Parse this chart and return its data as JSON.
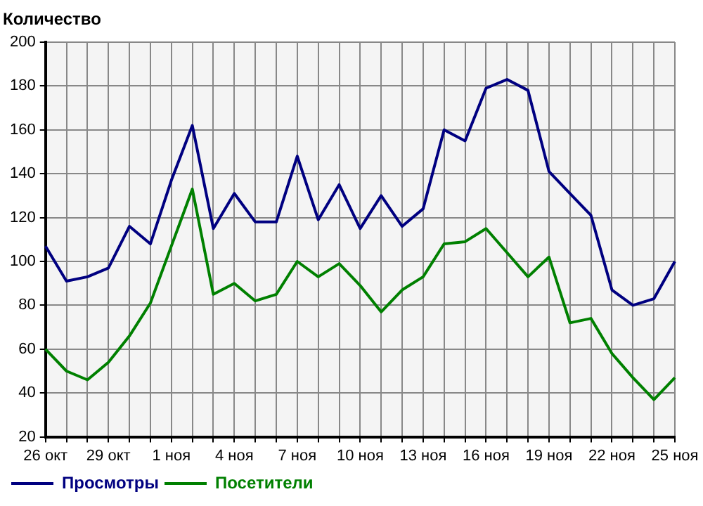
{
  "chart_data": {
    "type": "line",
    "ylabel": "Количество",
    "categories": [
      "26 окт",
      null,
      null,
      "29 окт",
      null,
      null,
      "1 ноя",
      null,
      null,
      "4 ноя",
      null,
      null,
      "7 ноя",
      null,
      null,
      "10 ноя",
      null,
      null,
      "13 ноя",
      null,
      null,
      "16 ноя",
      null,
      null,
      "19 ноя",
      null,
      null,
      "22 ноя",
      null,
      null,
      "25 ноя"
    ],
    "series": [
      {
        "name": "Просмотры",
        "color": "#000080",
        "values": [
          107,
          91,
          93,
          97,
          116,
          108,
          137,
          162,
          115,
          131,
          118,
          118,
          148,
          119,
          135,
          115,
          130,
          116,
          124,
          160,
          155,
          179,
          183,
          178,
          141,
          131,
          121,
          87,
          80,
          83,
          100
        ]
      },
      {
        "name": "Посетители",
        "color": "#008000",
        "values": [
          60,
          50,
          46,
          54,
          66,
          81,
          107,
          133,
          85,
          90,
          82,
          85,
          100,
          93,
          99,
          89,
          77,
          87,
          93,
          108,
          109,
          115,
          104,
          93,
          102,
          72,
          74,
          58,
          47,
          37,
          47
        ]
      }
    ],
    "ylim": [
      20,
      200
    ],
    "yticks": [
      20,
      40,
      60,
      80,
      100,
      120,
      140,
      160,
      180,
      200
    ],
    "grid": true,
    "legend": "bottom left",
    "marker": "none",
    "line_style": "solid"
  }
}
